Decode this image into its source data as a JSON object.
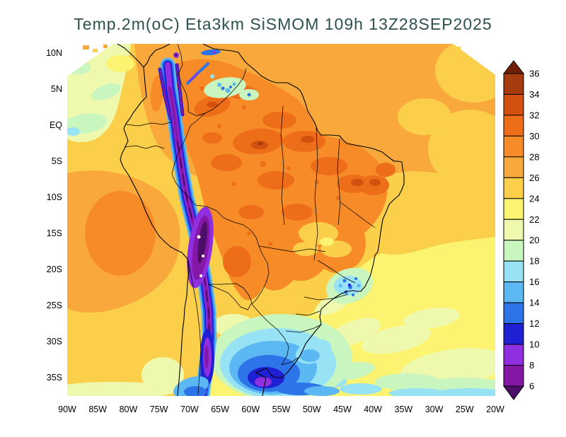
{
  "figure": {
    "title": "Temp.2m(oC) Eta3km SiSMOM 109h 13Z28SEP2025",
    "title_color": "#2d4f4f"
  },
  "chart_data": {
    "type": "heatmap",
    "title": "Temp.2m(oC) Eta3km SiSMOM 109h 13Z28SEP2025",
    "variable": "Temp.2m",
    "units": "oC",
    "model": "Eta3km",
    "system": "SiSMOM",
    "forecast_hour": "109h",
    "valid_time": "13Z28SEP2025",
    "grid": "off",
    "legend_position": "right-colorbar",
    "x_ticks": [
      "90W",
      "85W",
      "80W",
      "75W",
      "70W",
      "65W",
      "60W",
      "55W",
      "50W",
      "45W",
      "40W",
      "35W",
      "30W",
      "25W",
      "20W"
    ],
    "y_ticks": [
      "10N",
      "5N",
      "EQ",
      "5S",
      "10S",
      "15S",
      "20S",
      "25S",
      "30S",
      "35S"
    ],
    "colorbar": {
      "position": "right",
      "tick_labels_top_to_bottom": [
        "36",
        "34",
        "32",
        "30",
        "28",
        "26",
        "24",
        "22",
        "20",
        "18",
        "16",
        "14",
        "12",
        "10",
        "8",
        "6"
      ],
      "segments_top_to_bottom": [
        {
          "range": ">36",
          "color": "#6e1f06",
          "shape": "arrow-up"
        },
        {
          "range": "34-36",
          "color": "#a63b0d"
        },
        {
          "range": "32-34",
          "color": "#d4500f"
        },
        {
          "range": "30-32",
          "color": "#ee6d18"
        },
        {
          "range": "28-30",
          "color": "#f68b28"
        },
        {
          "range": "26-28",
          "color": "#f9a93c"
        },
        {
          "range": "24-26",
          "color": "#fbcf4a"
        },
        {
          "range": "22-24",
          "color": "#fcf470"
        },
        {
          "range": "20-22",
          "color": "#eef9ae"
        },
        {
          "range": "18-20",
          "color": "#c9f5be"
        },
        {
          "range": "16-18",
          "color": "#97e2f5"
        },
        {
          "range": "14-16",
          "color": "#5cb8f2"
        },
        {
          "range": "12-14",
          "color": "#2d74e8"
        },
        {
          "range": "10-12",
          "color": "#1f1fd4"
        },
        {
          "range": "8-10",
          "color": "#8f2fe0"
        },
        {
          "range": "6-8",
          "color": "#8618a8"
        },
        {
          "range": "<6",
          "color": "#4c0e66",
          "shape": "arrow-down"
        }
      ]
    },
    "field_regions": [
      {
        "region": "Amazon basin and central Brazil interior",
        "approx_temp_C": "28 to 32"
      },
      {
        "region": "Hottest inland patches (~60W 5S and NE Brazil sertao ~43W 8S)",
        "approx_temp_C": "32 to 34"
      },
      {
        "region": "Andes cordillera ridge from Ecuador to southern Chile",
        "approx_temp_C": "below 6 to 10"
      },
      {
        "region": "Andes flanks / altiplano margins",
        "approx_temp_C": "10 to 16"
      },
      {
        "region": "Caribbean and equatorial Atlantic waters",
        "approx_temp_C": "26 to 28"
      },
      {
        "region": "Tropical South Atlantic (5S-20S)",
        "approx_temp_C": "24 to 26"
      },
      {
        "region": "Subtropical South Atlantic (south of 22S)",
        "approx_temp_C": "18 to 24"
      },
      {
        "region": "Far-south Atlantic along bottom edge",
        "approx_temp_C": "16 to 18"
      },
      {
        "region": "Cold pool near 35S 58W (Rio de la Plata area)",
        "approx_temp_C": "8 to 16"
      },
      {
        "region": "SE Brazil highlands (~45W 21S) speckled cool area",
        "approx_temp_C": "12 to 20"
      },
      {
        "region": "Subtropical east Pacific warm patch (~83W 15-25S)",
        "approx_temp_C": "26 to 30"
      },
      {
        "region": "Pacific corner near Ecuador/Colombia coast (top-left)",
        "approx_temp_C": "18 to 22"
      },
      {
        "region": "Guiana highlands cool spots (~62W 4N)",
        "approx_temp_C": "12 to 20"
      },
      {
        "region": "Pampas / NE Argentina",
        "approx_temp_C": "20 to 24"
      }
    ]
  }
}
